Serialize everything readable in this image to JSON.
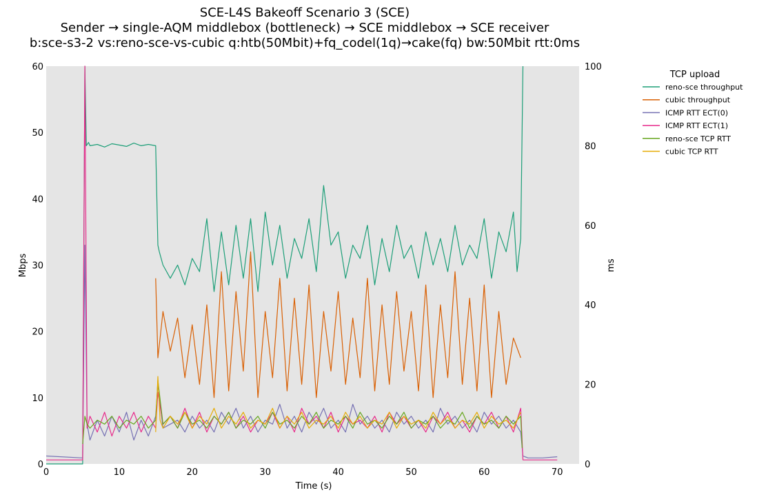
{
  "chart_data": {
    "type": "line",
    "title_lines": [
      "SCE-L4S Bakeoff Scenario 3 (SCE)",
      "Sender → single-AQM middlebox (bottleneck) → SCE middlebox → SCE receiver",
      "b:sce-s3-2 vs:reno-sce-vs-cubic q:htb(50Mbit)+fq_codel(1q)→cake(fq) bw:50Mbit rtt:0ms"
    ],
    "xlabel": "Time (s)",
    "ylabel_left": "Mbps",
    "ylabel_right": "ms",
    "xlim": [
      0,
      73
    ],
    "ylim_left": [
      0,
      60
    ],
    "ylim_right": [
      0,
      100
    ],
    "x_ticks": [
      "0",
      "10",
      "20",
      "30",
      "40",
      "50",
      "60",
      "70"
    ],
    "y_ticks_left": [
      "0",
      "10",
      "20",
      "30",
      "40",
      "50",
      "60"
    ],
    "y_ticks_right": [
      "0",
      "20",
      "40",
      "60",
      "80",
      "100"
    ],
    "grid": false,
    "background": "#e5e5e5",
    "legend": {
      "title": "TCP upload",
      "placement": "outside-right"
    },
    "series": [
      {
        "name": "reno-sce throughput",
        "axis": "left",
        "color": "#1b9e77",
        "x": [
          0,
          5.0,
          5.3,
          5.5,
          5.8,
          6,
          7,
          8,
          9,
          10,
          11,
          12,
          13,
          14,
          15,
          15.3,
          15.5,
          16,
          17,
          18,
          19,
          20,
          21,
          22,
          23,
          24,
          25,
          26,
          27,
          28,
          29,
          30,
          31,
          32,
          33,
          34,
          35,
          36,
          37,
          38,
          39,
          40,
          41,
          42,
          43,
          44,
          45,
          46,
          47,
          48,
          49,
          50,
          51,
          52,
          53,
          54,
          55,
          56,
          57,
          58,
          59,
          60,
          61,
          62,
          63,
          64,
          64.5,
          65,
          65.3
        ],
        "values": [
          0,
          0,
          60,
          48,
          48.5,
          48,
          48.2,
          47.8,
          48.3,
          48.1,
          47.9,
          48.4,
          48,
          48.2,
          48,
          33,
          32,
          30,
          28,
          30,
          27,
          31,
          29,
          37,
          26,
          35,
          27,
          36,
          28,
          37,
          26,
          38,
          30,
          36,
          28,
          34,
          31,
          37,
          29,
          42,
          33,
          35,
          28,
          33,
          31,
          36,
          27,
          34,
          29,
          36,
          31,
          33,
          28,
          35,
          30,
          34,
          29,
          36,
          30,
          33,
          31,
          37,
          28,
          35,
          32,
          38,
          29,
          34,
          60
        ]
      },
      {
        "name": "cubic throughput",
        "axis": "left",
        "color": "#d95f02",
        "x": [
          15,
          15.3,
          15.6,
          16,
          17,
          18,
          19,
          20,
          21,
          22,
          23,
          24,
          25,
          26,
          27,
          28,
          29,
          30,
          31,
          32,
          33,
          34,
          35,
          36,
          37,
          38,
          39,
          40,
          41,
          42,
          43,
          44,
          45,
          46,
          47,
          48,
          49,
          50,
          51,
          52,
          53,
          54,
          55,
          56,
          57,
          58,
          59,
          60,
          61,
          62,
          63,
          64,
          65
        ],
        "values": [
          28,
          16,
          19,
          23,
          17,
          22,
          13,
          21,
          12,
          24,
          10,
          29,
          11,
          26,
          14,
          32,
          10,
          23,
          13,
          28,
          11,
          25,
          12,
          27,
          10,
          23,
          14,
          26,
          12,
          22,
          13,
          28,
          11,
          24,
          12,
          26,
          14,
          23,
          11,
          27,
          10,
          24,
          13,
          29,
          12,
          25,
          11,
          27,
          10,
          23,
          12,
          19,
          16
        ]
      },
      {
        "name": "ICMP RTT ECT(0)",
        "axis": "right",
        "color": "#7570b3",
        "x": [
          0,
          5.0,
          5.3,
          5.6,
          6,
          7,
          8,
          9,
          10,
          11,
          12,
          13,
          14,
          15,
          15.3,
          16,
          17,
          18,
          19,
          20,
          21,
          22,
          23,
          24,
          25,
          26,
          27,
          28,
          29,
          30,
          31,
          32,
          33,
          34,
          35,
          36,
          37,
          38,
          39,
          40,
          41,
          42,
          43,
          44,
          45,
          46,
          47,
          48,
          49,
          50,
          51,
          52,
          53,
          54,
          55,
          56,
          57,
          58,
          59,
          60,
          61,
          62,
          63,
          64,
          65,
          65.3,
          66,
          68,
          70
        ],
        "values": [
          2,
          1.5,
          55,
          10,
          6,
          11,
          7,
          12,
          8,
          13,
          6,
          11,
          7,
          12,
          20,
          9,
          10,
          11,
          8,
          12,
          9,
          11,
          8,
          13,
          10,
          14,
          9,
          12,
          8,
          11,
          10,
          15,
          9,
          12,
          8,
          13,
          10,
          14,
          9,
          11,
          8,
          15,
          10,
          12,
          9,
          11,
          8,
          13,
          10,
          12,
          9,
          11,
          8,
          14,
          10,
          12,
          9,
          11,
          8,
          13,
          10,
          12,
          9,
          11,
          8,
          2,
          1.5,
          1.5,
          1.8
        ]
      },
      {
        "name": "ICMP RTT ECT(1)",
        "axis": "right",
        "color": "#e7298a",
        "x": [
          0,
          5.0,
          5.3,
          5.6,
          6,
          7,
          8,
          9,
          10,
          11,
          12,
          13,
          14,
          15,
          15.3,
          16,
          17,
          18,
          19,
          20,
          21,
          22,
          23,
          24,
          25,
          26,
          27,
          28,
          29,
          30,
          31,
          32,
          33,
          34,
          35,
          36,
          37,
          38,
          39,
          40,
          41,
          42,
          43,
          44,
          45,
          46,
          47,
          48,
          49,
          50,
          51,
          52,
          53,
          54,
          55,
          56,
          57,
          58,
          59,
          60,
          61,
          62,
          63,
          64,
          65,
          65.3,
          66,
          68,
          70
        ],
        "values": [
          1,
          1,
          100,
          9,
          12,
          8,
          13,
          7,
          12,
          9,
          13,
          8,
          12,
          9,
          18,
          10,
          12,
          9,
          14,
          9,
          13,
          8,
          12,
          10,
          13,
          9,
          12,
          8,
          11,
          10,
          13,
          9,
          12,
          8,
          14,
          10,
          12,
          9,
          13,
          8,
          12,
          10,
          11,
          9,
          12,
          8,
          13,
          10,
          12,
          9,
          11,
          8,
          12,
          10,
          13,
          9,
          11,
          8,
          12,
          10,
          13,
          9,
          12,
          8,
          14,
          1,
          1,
          1,
          1
        ]
      },
      {
        "name": "reno-sce TCP RTT",
        "axis": "right",
        "color": "#66a61e",
        "x": [
          5.0,
          5.3,
          5.6,
          6,
          7,
          8,
          9,
          10,
          11,
          12,
          13,
          14,
          15,
          15.3,
          16,
          17,
          18,
          19,
          20,
          21,
          22,
          23,
          24,
          25,
          26,
          27,
          28,
          29,
          30,
          31,
          32,
          33,
          34,
          35,
          36,
          37,
          38,
          39,
          40,
          41,
          42,
          43,
          44,
          45,
          46,
          47,
          48,
          49,
          50,
          51,
          52,
          53,
          54,
          55,
          56,
          57,
          58,
          59,
          60,
          61,
          62,
          63,
          64,
          65,
          65.2
        ],
        "values": [
          5,
          12,
          10,
          9,
          11,
          10,
          12,
          9,
          11,
          10,
          12,
          9,
          11,
          21,
          10,
          12,
          9,
          13,
          10,
          11,
          9,
          12,
          10,
          13,
          9,
          11,
          10,
          12,
          9,
          13,
          10,
          11,
          9,
          12,
          10,
          13,
          9,
          11,
          10,
          12,
          9,
          13,
          10,
          11,
          9,
          12,
          10,
          13,
          9,
          11,
          10,
          12,
          9,
          11,
          10,
          13,
          9,
          12,
          10,
          11,
          9,
          12,
          10,
          12,
          4
        ]
      },
      {
        "name": "cubic TCP RTT",
        "axis": "right",
        "color": "#e6ab02",
        "x": [
          15,
          15.3,
          15.6,
          16,
          17,
          18,
          19,
          20,
          21,
          22,
          23,
          24,
          25,
          26,
          27,
          28,
          29,
          30,
          31,
          32,
          33,
          34,
          35,
          36,
          37,
          38,
          39,
          40,
          41,
          42,
          43,
          44,
          45,
          46,
          47,
          48,
          49,
          50,
          51,
          52,
          53,
          54,
          55,
          56,
          57,
          58,
          59,
          60,
          61,
          62,
          63,
          64,
          65
        ],
        "values": [
          8,
          22,
          11,
          9,
          12,
          10,
          13,
          9,
          12,
          10,
          14,
          9,
          12,
          10,
          13,
          9,
          11,
          10,
          14,
          9,
          12,
          10,
          13,
          9,
          11,
          10,
          12,
          9,
          13,
          10,
          12,
          9,
          11,
          10,
          13,
          9,
          12,
          10,
          11,
          9,
          13,
          10,
          12,
          9,
          11,
          10,
          13,
          9,
          12,
          10,
          11,
          9,
          13
        ]
      }
    ]
  }
}
